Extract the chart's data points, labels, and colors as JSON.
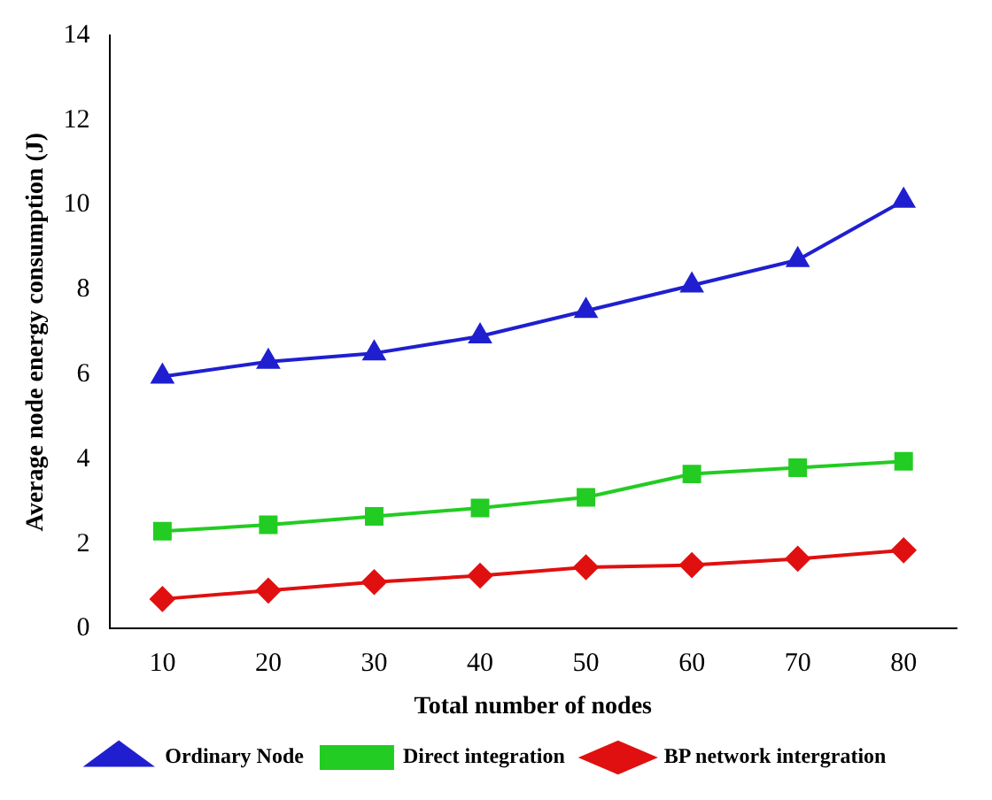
{
  "chart_data": {
    "type": "line",
    "xlabel": "Total number of nodes",
    "ylabel": "Average node energy consumption (J)",
    "categories": [
      "10",
      "20",
      "30",
      "40",
      "50",
      "60",
      "70",
      "80"
    ],
    "series": [
      {
        "name": "Ordinary Node",
        "color": "#1f1fd0",
        "marker": "triangle",
        "values": [
          5.95,
          6.3,
          6.5,
          6.9,
          7.5,
          8.1,
          8.7,
          10.1
        ]
      },
      {
        "name": "Direct integration",
        "color": "#22cc22",
        "marker": "square",
        "values": [
          2.3,
          2.45,
          2.65,
          2.85,
          3.1,
          3.65,
          3.8,
          3.95
        ]
      },
      {
        "name": "BP network intergration",
        "color": "#e01010",
        "marker": "diamond",
        "values": [
          0.7,
          0.9,
          1.1,
          1.25,
          1.45,
          1.5,
          1.65,
          1.85
        ]
      }
    ],
    "ylim": [
      0,
      14
    ],
    "yticks": [
      0,
      2,
      4,
      6,
      8,
      10,
      12,
      14
    ],
    "grid": false,
    "legend": "bottom",
    "line_style": "solid"
  }
}
